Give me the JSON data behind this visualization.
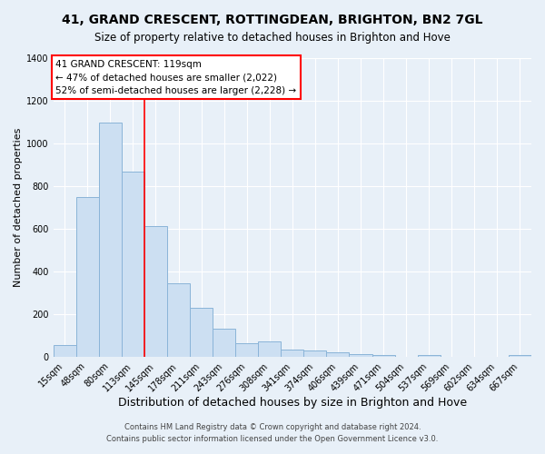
{
  "title": "41, GRAND CRESCENT, ROTTINGDEAN, BRIGHTON, BN2 7GL",
  "subtitle": "Size of property relative to detached houses in Brighton and Hove",
  "xlabel": "Distribution of detached houses by size in Brighton and Hove",
  "ylabel": "Number of detached properties",
  "bar_labels": [
    "15sqm",
    "48sqm",
    "80sqm",
    "113sqm",
    "145sqm",
    "178sqm",
    "211sqm",
    "243sqm",
    "276sqm",
    "308sqm",
    "341sqm",
    "374sqm",
    "406sqm",
    "439sqm",
    "471sqm",
    "504sqm",
    "537sqm",
    "569sqm",
    "602sqm",
    "634sqm",
    "667sqm"
  ],
  "bar_values": [
    55,
    750,
    1100,
    870,
    615,
    345,
    228,
    132,
    65,
    72,
    33,
    30,
    20,
    14,
    10,
    0,
    9,
    0,
    0,
    0,
    8
  ],
  "bar_color": "#ccdff2",
  "bar_edgecolor": "#8ab4d8",
  "ylim": [
    0,
    1400
  ],
  "yticks": [
    0,
    200,
    400,
    600,
    800,
    1000,
    1200,
    1400
  ],
  "property_line_index": 3,
  "property_line_color": "red",
  "annotation_title": "41 GRAND CRESCENT: 119sqm",
  "annotation_line1": "← 47% of detached houses are smaller (2,022)",
  "annotation_line2": "52% of semi-detached houses are larger (2,228) →",
  "annotation_box_color": "#ffffff",
  "annotation_box_edgecolor": "red",
  "footer1": "Contains HM Land Registry data © Crown copyright and database right 2024.",
  "footer2": "Contains public sector information licensed under the Open Government Licence v3.0.",
  "background_color": "#e8f0f8",
  "grid_color": "#ffffff",
  "title_fontsize": 10,
  "subtitle_fontsize": 8.5,
  "xlabel_fontsize": 9,
  "ylabel_fontsize": 8,
  "tick_fontsize": 7,
  "annotation_fontsize": 7.5,
  "footer_fontsize": 6
}
